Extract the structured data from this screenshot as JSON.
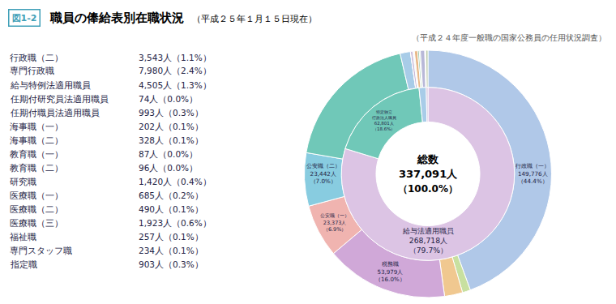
{
  "chart_data": [
    {
      "type": "pie",
      "title": "職員の俸給表別在職状況",
      "subtitle": "（平成２５年１月１５日現在）",
      "annotations": [
        "図1-2",
        "（平成２４年度一般職の国家公務員の任用状況調査）",
        "総数",
        "337,091人",
        "（100.0%）"
      ],
      "categories": [
        "行政職（一）",
        "行政職（二）",
        "専門行政職",
        "税務職",
        "公安職（一）",
        "公安職（二）",
        null,
        "給与特例法適用職員",
        "任期付研究員法適用職員",
        "任期付職員法適用職員",
        "海事職（一）",
        "海事職（二）",
        "教育職（一）",
        "教育職（二）",
        "研究職",
        "医療職（一）",
        "医療職（二）",
        "医療職（三）",
        "福祉職",
        "専門スタッフ職",
        "指定職"
      ],
      "values": [
        149776,
        3543,
        7980,
        53979,
        23373,
        23442,
        62801,
        4505,
        74,
        993,
        202,
        328,
        87,
        96,
        1420,
        685,
        490,
        1923,
        257,
        234,
        903
      ],
      "value_labels": [
        "149,776人\n（44.4%）",
        "3,543人（1.1%）",
        "7,980人（2.4%）",
        "53,979人\n（16.0%）",
        "23,373人\n（6.9%）",
        "23,442人\n（7.0%）",
        null,
        "4,505人（1.3%）",
        "74人（0.0%）",
        "993人（0.3%）",
        "202人（0.1%）",
        "328人（0.1%）",
        "87人（0.0%）",
        "96人（0.0%）",
        "1,420人（0.4%）",
        "685人（0.2%）",
        "490人（0.1%）",
        "1,923人（0.6%）",
        "257人（0.1%）",
        "234人（0.1%）",
        "903人（0.3%）"
      ],
      "colors": [
        "#b0c8e8",
        "#c8e0a0",
        "#f0c890",
        "#d0a8d8",
        "#f0b4b0",
        "#88cce0",
        "#70c8b8",
        "#a8cce8",
        "#e8b0cc",
        "#c8b8d8",
        "#a8b8d8",
        "#b8a8c8",
        "#c8d898",
        "#d8c888",
        "#e8b888",
        "#98c8a8",
        "#a8d8b8",
        "#b8b8d8",
        "#c8a8b8",
        "#d8b8a8",
        "#b8c8a8"
      ],
      "data_labels": true
    },
    {
      "type": "pie",
      "categories": [
        "給与法適用職員",
        "特定独立\n行政法人職員",
        null,
        null
      ],
      "values": [
        268718,
        62801,
        4505,
        1067
      ],
      "value_labels": [
        "268,718人\n（79.7%）",
        "62,801人\n（18.6%）",
        null,
        null
      ],
      "colors": [
        "#dcc4e4",
        "#70c8b8",
        "#a8cce8",
        "#d0b8d8"
      ],
      "data_labels": true
    }
  ]
}
